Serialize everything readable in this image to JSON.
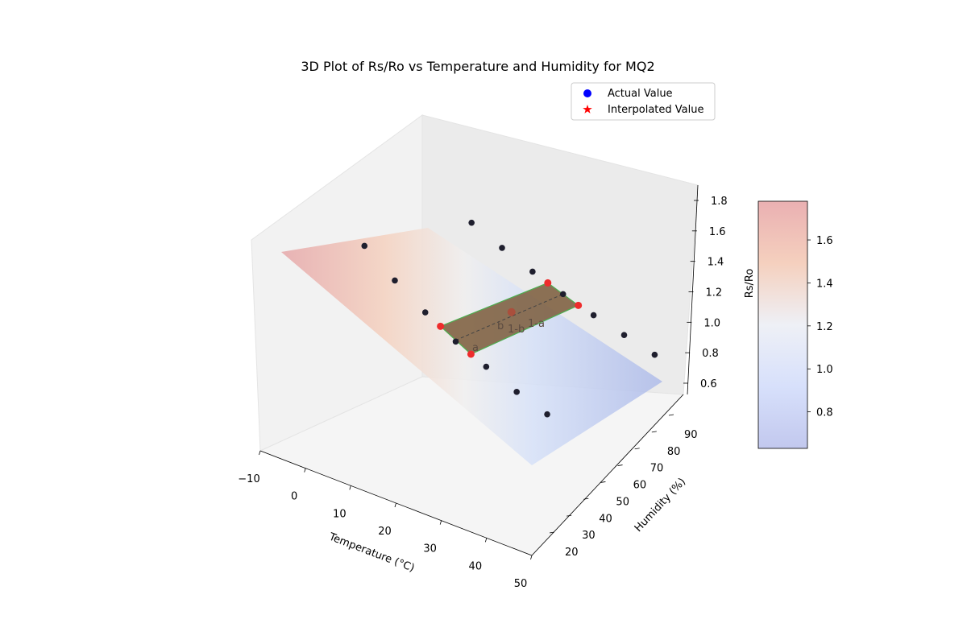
{
  "chart_data": {
    "type": "scatter",
    "title": "3D Plot of Rs/Ro vs Temperature and Humidity for MQ2",
    "xlabel": "Temperature (°C)",
    "ylabel": "Humidity (%)",
    "zlabel": "Rs/Ro",
    "colorbar_label": "Rs/Ro",
    "x_ticks": [
      "−10",
      "0",
      "10",
      "20",
      "30",
      "40",
      "50"
    ],
    "y_ticks": [
      "20",
      "30",
      "40",
      "50",
      "60",
      "70",
      "80",
      "90"
    ],
    "z_ticks": [
      "0.6",
      "0.8",
      "1.0",
      "1.2",
      "1.4",
      "1.6",
      "1.8"
    ],
    "colorbar_ticks": [
      "0.8",
      "1.0",
      "1.2",
      "1.4",
      "1.6"
    ],
    "colorbar_range": [
      0.63,
      1.78
    ],
    "colormap": "coolwarm",
    "legend": [
      {
        "label": "Actual Value",
        "marker": "circle",
        "color": "#0000ff"
      },
      {
        "label": "Interpolated Value",
        "marker": "star",
        "color": "#ff0000"
      }
    ],
    "legend_position": "upper-right",
    "series": [
      {
        "name": "Actual Value",
        "points": [
          {
            "x": -10,
            "y": 33,
            "z": 1.7
          },
          {
            "x": 0,
            "y": 33,
            "z": 1.53
          },
          {
            "x": 10,
            "y": 33,
            "z": 1.38
          },
          {
            "x": 20,
            "y": 33,
            "z": 1.25
          },
          {
            "x": 30,
            "y": 33,
            "z": 1.15
          },
          {
            "x": 40,
            "y": 33,
            "z": 1.05
          },
          {
            "x": 50,
            "y": 33,
            "z": 0.97
          },
          {
            "x": -10,
            "y": 85,
            "z": 1.22
          },
          {
            "x": 0,
            "y": 85,
            "z": 1.12
          },
          {
            "x": 10,
            "y": 85,
            "z": 1.03
          },
          {
            "x": 20,
            "y": 85,
            "z": 0.95
          },
          {
            "x": 30,
            "y": 85,
            "z": 0.88
          },
          {
            "x": 40,
            "y": 85,
            "z": 0.82
          },
          {
            "x": 50,
            "y": 85,
            "z": 0.76
          }
        ]
      },
      {
        "name": "Interpolated Value",
        "points": [
          {
            "x": 20,
            "y": 60,
            "z": 1.13
          }
        ]
      }
    ],
    "interpolation_corners": [
      {
        "x": 15,
        "y": 33,
        "z": 1.32
      },
      {
        "x": 25,
        "y": 33,
        "z": 1.2
      },
      {
        "x": 15,
        "y": 85,
        "z": 0.99
      },
      {
        "x": 25,
        "y": 85,
        "z": 0.91
      }
    ],
    "annotations": [
      "a",
      "b",
      "1-b",
      "1-a"
    ]
  }
}
